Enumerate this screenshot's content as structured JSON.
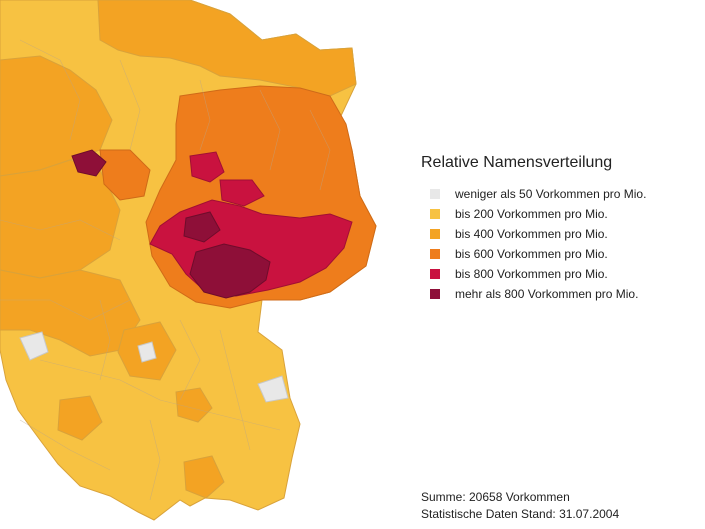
{
  "legend": {
    "title": "Relative Namensverteilung",
    "items": [
      {
        "label": "weniger als 50 Vorkommen pro Mio.",
        "color": "#e8e8e8"
      },
      {
        "label": "bis 200 Vorkommen pro Mio.",
        "color": "#f7c242"
      },
      {
        "label": "bis 400 Vorkommen pro Mio.",
        "color": "#f3a323"
      },
      {
        "label": "bis 600 Vorkommen pro Mio.",
        "color": "#ee7d1c"
      },
      {
        "label": "bis 800 Vorkommen pro Mio.",
        "color": "#c9123f"
      },
      {
        "label": "mehr als 800 Vorkommen pro Mio.",
        "color": "#8e0f38"
      }
    ]
  },
  "footer": {
    "sum": "Summe: 20658 Vorkommen",
    "date": "Statistische Daten Stand: 31.07.2004"
  },
  "colors": {
    "border": "#b9a58a",
    "background": "#ffffff"
  }
}
